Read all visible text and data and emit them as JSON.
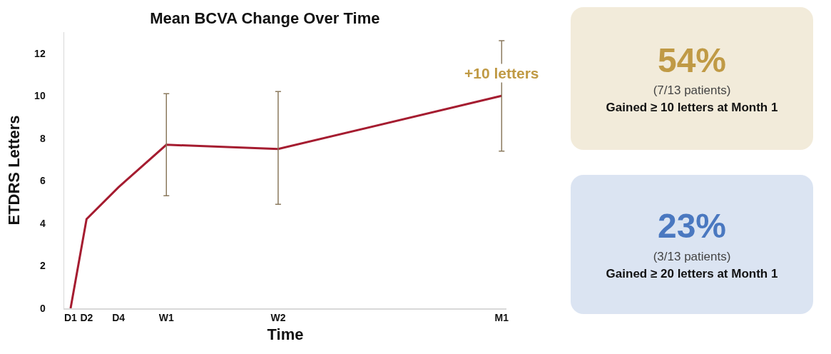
{
  "chart_data": [
    {
      "type": "line",
      "title": "Mean BCVA Change Over Time",
      "xlabel": "Time",
      "ylabel": "ETDRS Letters",
      "categories": [
        "D1",
        "D2",
        null,
        "D4",
        null,
        null,
        "W1",
        null,
        null,
        null,
        null,
        null,
        null,
        "W2",
        null,
        null,
        null,
        null,
        null,
        null,
        null,
        null,
        null,
        null,
        null,
        null,
        null,
        "M1"
      ],
      "series": [
        {
          "color": "#a51c30",
          "values": [
            0,
            4.2,
            null,
            5.7,
            null,
            null,
            7.7,
            null,
            null,
            null,
            null,
            null,
            null,
            7.5,
            null,
            null,
            null,
            null,
            null,
            null,
            null,
            null,
            null,
            null,
            null,
            null,
            null,
            10
          ],
          "errors": [
            null,
            null,
            null,
            null,
            null,
            null,
            [
              5.3,
              10.1
            ],
            null,
            null,
            null,
            null,
            null,
            null,
            [
              4.9,
              10.2
            ],
            null,
            null,
            null,
            null,
            null,
            null,
            null,
            null,
            null,
            null,
            null,
            null,
            null,
            [
              7.4,
              12.6
            ]
          ]
        }
      ],
      "ylim": [
        0,
        13
      ],
      "yticks": [
        0,
        2,
        4,
        6,
        8,
        10,
        12
      ],
      "grid": false,
      "marker": "none",
      "line_style": "solid",
      "annotations": [
        {
          "text": "+10 letters",
          "x": "M1",
          "y": 10
        }
      ]
    },
    {
      "type": "other",
      "title": "54%",
      "color": "#c09a45",
      "annotations": [
        "(7/13 patients)",
        "Gained ≥ 10 letters at Month 1"
      ]
    },
    {
      "type": "other",
      "title": "23%",
      "color": "#4a78c0",
      "annotations": [
        "(3/13 patients)",
        "Gained ≥ 20 letters at Month 1"
      ]
    }
  ]
}
